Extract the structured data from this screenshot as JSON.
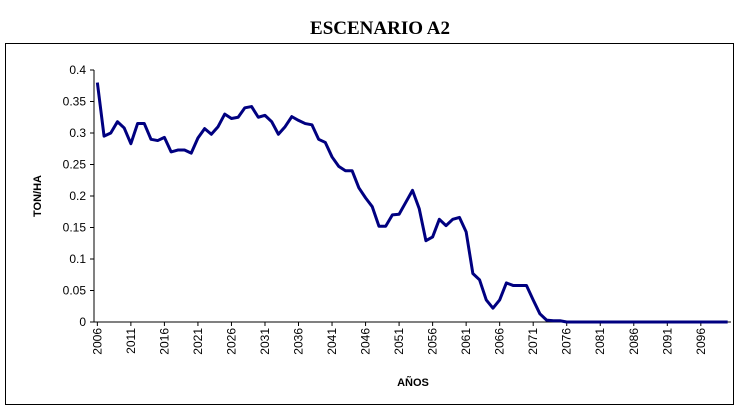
{
  "chart_data": {
    "type": "line",
    "title": "ESCENARIO A2",
    "x_label": "AÑOS",
    "y_label": "TON/HA",
    "x": [
      2006,
      2007,
      2008,
      2009,
      2010,
      2011,
      2012,
      2013,
      2014,
      2015,
      2016,
      2017,
      2018,
      2019,
      2020,
      2021,
      2022,
      2023,
      2024,
      2025,
      2026,
      2027,
      2028,
      2029,
      2030,
      2031,
      2032,
      2033,
      2034,
      2035,
      2036,
      2037,
      2038,
      2039,
      2040,
      2041,
      2042,
      2043,
      2044,
      2045,
      2046,
      2047,
      2048,
      2049,
      2050,
      2051,
      2052,
      2053,
      2054,
      2055,
      2056,
      2057,
      2058,
      2059,
      2060,
      2061,
      2062,
      2063,
      2064,
      2065,
      2066,
      2067,
      2068,
      2069,
      2070,
      2071,
      2072,
      2073,
      2074,
      2075,
      2076,
      2077,
      2078,
      2079,
      2080,
      2081,
      2082,
      2083,
      2084,
      2085,
      2086,
      2087,
      2088,
      2089,
      2090,
      2091,
      2092,
      2093,
      2094,
      2095,
      2096,
      2097,
      2098,
      2099,
      2100
    ],
    "series": [
      {
        "name": "TON/HA",
        "color": "#000080",
        "values": [
          0.38,
          0.295,
          0.3,
          0.318,
          0.308,
          0.283,
          0.315,
          0.315,
          0.29,
          0.288,
          0.293,
          0.27,
          0.273,
          0.273,
          0.268,
          0.292,
          0.307,
          0.298,
          0.31,
          0.33,
          0.323,
          0.325,
          0.34,
          0.342,
          0.325,
          0.328,
          0.318,
          0.298,
          0.31,
          0.326,
          0.32,
          0.315,
          0.313,
          0.29,
          0.285,
          0.262,
          0.247,
          0.24,
          0.24,
          0.213,
          0.197,
          0.183,
          0.152,
          0.152,
          0.17,
          0.171,
          0.19,
          0.209,
          0.18,
          0.129,
          0.135,
          0.163,
          0.153,
          0.163,
          0.166,
          0.143,
          0.077,
          0.067,
          0.035,
          0.022,
          0.035,
          0.062,
          0.058,
          0.058,
          0.058,
          0.035,
          0.013,
          0.003,
          0.002,
          0.002,
          0,
          0,
          0,
          0,
          0,
          0,
          0,
          0,
          0,
          0,
          0,
          0,
          0,
          0,
          0,
          0,
          0,
          0,
          0,
          0,
          0,
          0,
          0,
          0,
          0
        ]
      }
    ],
    "xlim": [
      2005.5,
      2100.5
    ],
    "xticks": [
      2006,
      2011,
      2016,
      2021,
      2026,
      2031,
      2036,
      2041,
      2046,
      2051,
      2056,
      2061,
      2066,
      2071,
      2076,
      2081,
      2086,
      2091,
      2096
    ],
    "ylim": [
      0,
      0.4
    ],
    "yticks": [
      0,
      0.05,
      0.1,
      0.15,
      0.2,
      0.25,
      0.3,
      0.35,
      0.4
    ],
    "grid": false
  }
}
